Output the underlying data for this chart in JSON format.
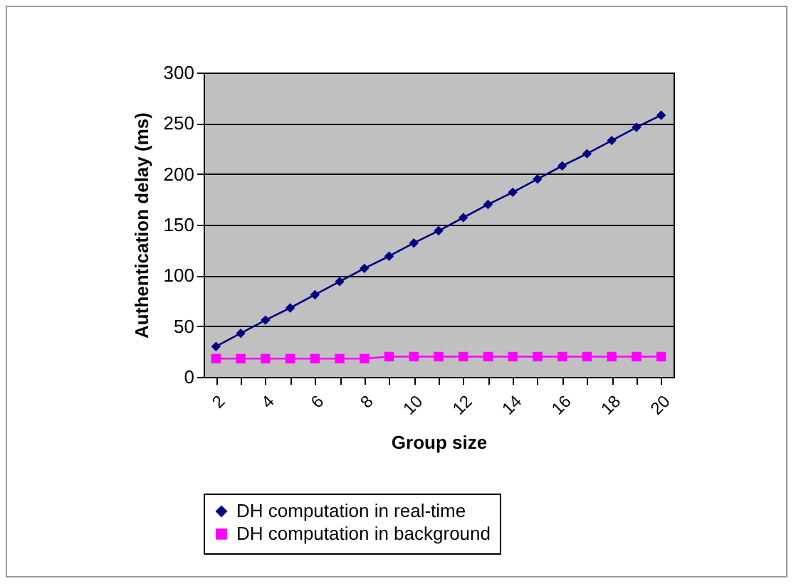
{
  "chart_data": {
    "type": "line",
    "xlabel": "Group size",
    "ylabel": "Authentication delay (ms)",
    "categories": [
      "2",
      null,
      "4",
      null,
      "6",
      null,
      "8",
      null,
      "10",
      null,
      "12",
      null,
      "14",
      null,
      "16",
      null,
      "18",
      null,
      "20"
    ],
    "series": [
      {
        "name": "DH computation in real-time",
        "color": "#000080",
        "marker": "diamond",
        "values": [
          30,
          43,
          56,
          68,
          81,
          94,
          107,
          119,
          132,
          144,
          157,
          170,
          182,
          195,
          208,
          220,
          233,
          246,
          258
        ]
      },
      {
        "name": "DH computation in background",
        "color": "#ff00ff",
        "marker": "square",
        "values": [
          18,
          18,
          18,
          18,
          18,
          18,
          18,
          20,
          20,
          20,
          20,
          20,
          20,
          20,
          20,
          20,
          20,
          20,
          20
        ]
      }
    ],
    "ylim": [
      0,
      300
    ],
    "yticks": [
      0,
      50,
      100,
      150,
      200,
      250,
      300
    ],
    "grid": "y",
    "legend": "bottom"
  }
}
